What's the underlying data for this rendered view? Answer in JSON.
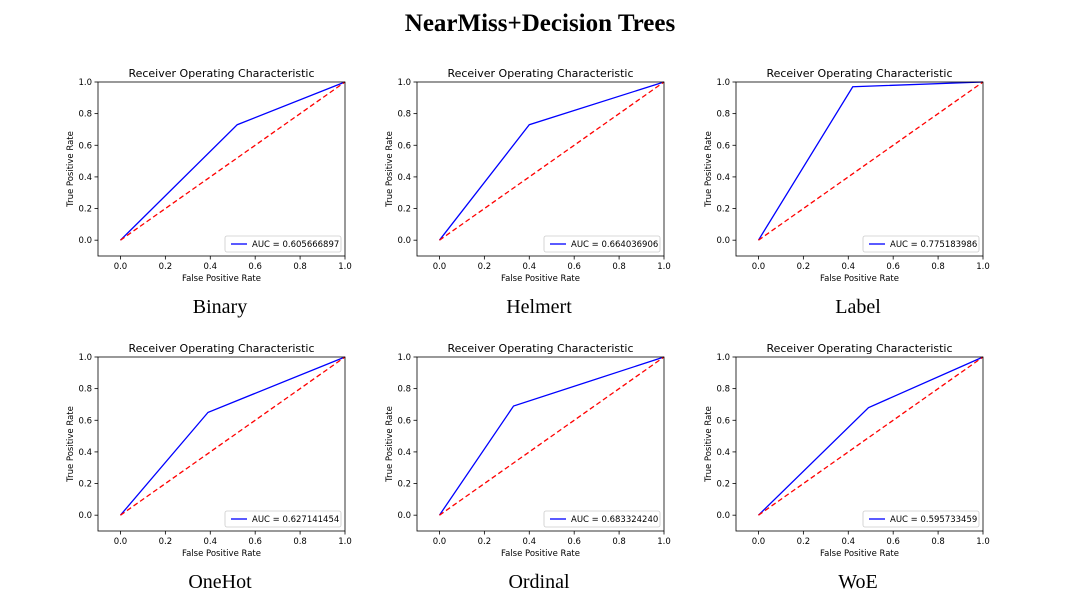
{
  "page_title": "NearMiss+Decision Trees",
  "chart_data": [
    {
      "type": "line",
      "caption": "Binary",
      "title": "Receiver Operating Characteristic",
      "xlabel": "False Positive Rate",
      "ylabel": "True Positive Rate",
      "xlim": [
        -0.1,
        1.0
      ],
      "ylim": [
        -0.1,
        1.0
      ],
      "xticks": [
        "0.0",
        "0.2",
        "0.4",
        "0.6",
        "0.8",
        "1.0"
      ],
      "yticks": [
        "0.0",
        "0.2",
        "0.4",
        "0.6",
        "0.8",
        "1.0"
      ],
      "legend_position": "lower-right",
      "series": [
        {
          "name": "AUC = 0.605666897",
          "color": "#0000ff",
          "style": "solid",
          "x": [
            0.0,
            0.52,
            1.0
          ],
          "y": [
            0.0,
            0.73,
            1.0
          ]
        },
        {
          "color": "#ff0000",
          "style": "dashed",
          "x": [
            0.0,
            1.0
          ],
          "y": [
            0.0,
            1.0
          ]
        }
      ]
    },
    {
      "type": "line",
      "caption": "Helmert",
      "title": "Receiver Operating Characteristic",
      "xlabel": "False Positive Rate",
      "ylabel": "True Positive Rate",
      "xlim": [
        -0.1,
        1.0
      ],
      "ylim": [
        -0.1,
        1.0
      ],
      "xticks": [
        "0.0",
        "0.2",
        "0.4",
        "0.6",
        "0.8",
        "1.0"
      ],
      "yticks": [
        "0.0",
        "0.2",
        "0.4",
        "0.6",
        "0.8",
        "1.0"
      ],
      "legend_position": "lower-right",
      "series": [
        {
          "name": "AUC = 0.664036906",
          "color": "#0000ff",
          "style": "solid",
          "x": [
            0.0,
            0.4,
            1.0
          ],
          "y": [
            0.0,
            0.73,
            1.0
          ]
        },
        {
          "color": "#ff0000",
          "style": "dashed",
          "x": [
            0.0,
            1.0
          ],
          "y": [
            0.0,
            1.0
          ]
        }
      ]
    },
    {
      "type": "line",
      "caption": "Label",
      "title": "Receiver Operating Characteristic",
      "xlabel": "False Positive Rate",
      "ylabel": "True Positive Rate",
      "xlim": [
        -0.1,
        1.0
      ],
      "ylim": [
        -0.1,
        1.0
      ],
      "xticks": [
        "0.0",
        "0.2",
        "0.4",
        "0.6",
        "0.8",
        "1.0"
      ],
      "yticks": [
        "0.0",
        "0.2",
        "0.4",
        "0.6",
        "0.8",
        "1.0"
      ],
      "legend_position": "lower-right",
      "series": [
        {
          "name": "AUC = 0.775183986",
          "color": "#0000ff",
          "style": "solid",
          "x": [
            0.0,
            0.42,
            1.0
          ],
          "y": [
            0.0,
            0.97,
            1.0
          ]
        },
        {
          "color": "#ff0000",
          "style": "dashed",
          "x": [
            0.0,
            1.0
          ],
          "y": [
            0.0,
            1.0
          ]
        }
      ]
    },
    {
      "type": "line",
      "caption": "OneHot",
      "title": "Receiver Operating Characteristic",
      "xlabel": "False Positive Rate",
      "ylabel": "True Positive Rate",
      "xlim": [
        -0.1,
        1.0
      ],
      "ylim": [
        -0.1,
        1.0
      ],
      "xticks": [
        "0.0",
        "0.2",
        "0.4",
        "0.6",
        "0.8",
        "1.0"
      ],
      "yticks": [
        "0.0",
        "0.2",
        "0.4",
        "0.6",
        "0.8",
        "1.0"
      ],
      "legend_position": "lower-right",
      "series": [
        {
          "name": "AUC = 0.627141454",
          "color": "#0000ff",
          "style": "solid",
          "x": [
            0.0,
            0.39,
            1.0
          ],
          "y": [
            0.0,
            0.65,
            1.0
          ]
        },
        {
          "color": "#ff0000",
          "style": "dashed",
          "x": [
            0.0,
            1.0
          ],
          "y": [
            0.0,
            1.0
          ]
        }
      ]
    },
    {
      "type": "line",
      "caption": "Ordinal",
      "title": "Receiver Operating Characteristic",
      "xlabel": "False Positive Rate",
      "ylabel": "True Positive Rate",
      "xlim": [
        -0.1,
        1.0
      ],
      "ylim": [
        -0.1,
        1.0
      ],
      "xticks": [
        "0.0",
        "0.2",
        "0.4",
        "0.6",
        "0.8",
        "1.0"
      ],
      "yticks": [
        "0.0",
        "0.2",
        "0.4",
        "0.6",
        "0.8",
        "1.0"
      ],
      "legend_position": "lower-right",
      "series": [
        {
          "name": "AUC = 0.683324240",
          "color": "#0000ff",
          "style": "solid",
          "x": [
            0.0,
            0.33,
            1.0
          ],
          "y": [
            0.0,
            0.69,
            1.0
          ]
        },
        {
          "color": "#ff0000",
          "style": "dashed",
          "x": [
            0.0,
            1.0
          ],
          "y": [
            0.0,
            1.0
          ]
        }
      ]
    },
    {
      "type": "line",
      "caption": "WoE",
      "title": "Receiver Operating Characteristic",
      "xlabel": "False Positive Rate",
      "ylabel": "True Positive Rate",
      "xlim": [
        -0.1,
        1.0
      ],
      "ylim": [
        -0.1,
        1.0
      ],
      "xticks": [
        "0.0",
        "0.2",
        "0.4",
        "0.6",
        "0.8",
        "1.0"
      ],
      "yticks": [
        "0.0",
        "0.2",
        "0.4",
        "0.6",
        "0.8",
        "1.0"
      ],
      "legend_position": "lower-right",
      "series": [
        {
          "name": "AUC = 0.595733459",
          "color": "#0000ff",
          "style": "solid",
          "x": [
            0.0,
            0.49,
            1.0
          ],
          "y": [
            0.0,
            0.68,
            1.0
          ]
        },
        {
          "color": "#ff0000",
          "style": "dashed",
          "x": [
            0.0,
            1.0
          ],
          "y": [
            0.0,
            1.0
          ]
        }
      ]
    }
  ]
}
